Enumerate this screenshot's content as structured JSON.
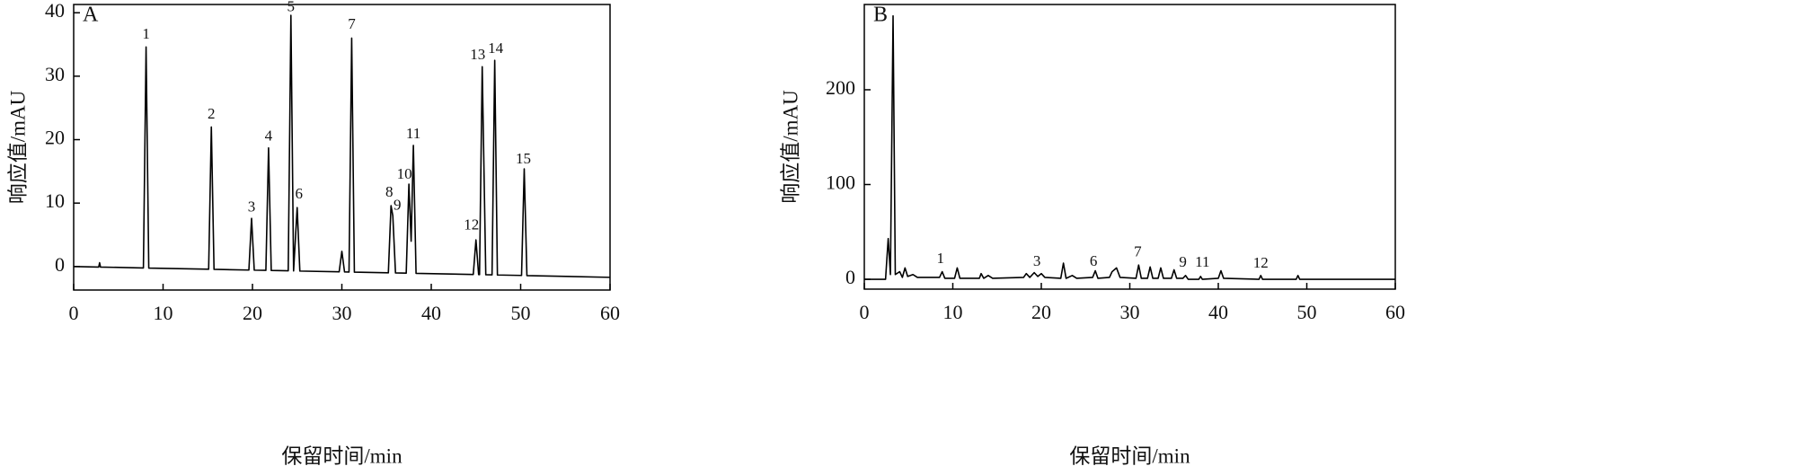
{
  "chart_data": [
    {
      "type": "line",
      "panel_label": "A",
      "xlabel": "保留时间/min",
      "ylabel": "响应值/mAU",
      "color": "#000000",
      "xlim": [
        0,
        60
      ],
      "ylim": [
        -3.7,
        41.3
      ],
      "xticks": [
        0,
        10,
        20,
        30,
        40,
        50,
        60
      ],
      "yticks": [
        0,
        10,
        20,
        30,
        40
      ],
      "x": [
        0,
        2.8,
        2.9,
        3.0,
        7.8,
        8.1,
        8.4,
        15.1,
        15.4,
        15.7,
        19.6,
        19.9,
        20.2,
        21.5,
        21.8,
        22.1,
        24.0,
        24.3,
        24.6,
        25.0,
        25.3,
        29.7,
        30.0,
        30.3,
        30.8,
        31.1,
        31.4,
        35.2,
        35.5,
        35.7,
        36.0,
        37.2,
        37.5,
        37.75,
        38.0,
        38.3,
        44.7,
        45.0,
        45.3,
        45.4,
        45.7,
        46.1,
        46.8,
        47.1,
        47.4,
        50.1,
        50.4,
        50.7,
        60
      ],
      "values": [
        0,
        -0.08,
        0.6,
        -0.08,
        -0.22,
        34.6,
        -0.24,
        -0.42,
        22.0,
        -0.44,
        -0.55,
        7.6,
        -0.57,
        -0.6,
        18.7,
        -0.62,
        -0.67,
        39.6,
        -0.69,
        9.3,
        -0.71,
        -0.83,
        2.4,
        -0.85,
        -0.86,
        36.0,
        -0.88,
        -0.99,
        9.6,
        8.0,
        -1.0,
        -1.04,
        13.0,
        4.0,
        19.1,
        -1.07,
        -1.25,
        4.2,
        -1.27,
        -1.27,
        31.5,
        -1.29,
        -1.31,
        32.5,
        -1.33,
        -1.4,
        15.4,
        -1.42,
        -1.7
      ],
      "annotations": [
        {
          "text": "1",
          "x": 8.1,
          "y": 36.5
        },
        {
          "text": "2",
          "x": 15.4,
          "y": 23.9
        },
        {
          "text": "3",
          "x": 19.9,
          "y": 9.2
        },
        {
          "text": "4",
          "x": 21.8,
          "y": 20.4
        },
        {
          "text": "5",
          "x": 24.3,
          "y": 40.8
        },
        {
          "text": "6",
          "x": 25.2,
          "y": 11.3
        },
        {
          "text": "7",
          "x": 31.1,
          "y": 38.0
        },
        {
          "text": "8",
          "x": 35.3,
          "y": 11.6
        },
        {
          "text": "9",
          "x": 36.2,
          "y": 9.5
        },
        {
          "text": "10",
          "x": 37.0,
          "y": 14.4
        },
        {
          "text": "11",
          "x": 38.0,
          "y": 20.8
        },
        {
          "text": "12",
          "x": 44.5,
          "y": 6.4
        },
        {
          "text": "13",
          "x": 45.2,
          "y": 33.2
        },
        {
          "text": "14",
          "x": 47.2,
          "y": 34.2
        },
        {
          "text": "15",
          "x": 50.3,
          "y": 16.8
        }
      ]
    },
    {
      "type": "line",
      "panel_label": "B",
      "xlabel": "保留时间/min",
      "ylabel": "响应值/mAU",
      "color": "#000000",
      "xlim": [
        0,
        60
      ],
      "ylim": [
        -10.4,
        290
      ],
      "xticks": [
        0,
        10,
        20,
        30,
        40,
        50,
        60
      ],
      "yticks": [
        0,
        100,
        200
      ],
      "x": [
        0,
        2.4,
        2.7,
        2.95,
        3.25,
        3.5,
        4.0,
        4.3,
        4.6,
        4.9,
        5.5,
        6,
        8.5,
        8.8,
        9.1,
        10.2,
        10.5,
        10.8,
        13,
        13.2,
        13.5,
        14,
        14.5,
        18,
        18.3,
        18.7,
        19.2,
        19.6,
        20,
        20.4,
        22.2,
        22.5,
        22.8,
        23.5,
        24,
        25.8,
        26.1,
        26.4,
        27.7,
        28,
        28.5,
        28.9,
        30.7,
        31.0,
        31.3,
        32,
        32.3,
        32.6,
        33.2,
        33.5,
        33.8,
        34.7,
        35.0,
        35.3,
        36,
        36.3,
        36.6,
        37.8,
        38,
        38.2,
        40,
        40.3,
        40.6,
        44.6,
        44.8,
        45,
        48.8,
        49,
        49.2,
        60
      ],
      "values": [
        0,
        0,
        43,
        5,
        278,
        5,
        8,
        2,
        12,
        3,
        5,
        2,
        2,
        8,
        1,
        1,
        12,
        1,
        1,
        6,
        1,
        4,
        1,
        2,
        6,
        2,
        7,
        3,
        6,
        2,
        1,
        17,
        1,
        4,
        1,
        2,
        9,
        1,
        2,
        8,
        12,
        2,
        1,
        15,
        1,
        1,
        13,
        1,
        1,
        12,
        1,
        1,
        10,
        1,
        1,
        4,
        0,
        0,
        3,
        0,
        1,
        9,
        1,
        0,
        4,
        0,
        0,
        4,
        0,
        0
      ],
      "annotations": [
        {
          "text": "1",
          "x": 8.6,
          "y": 21
        },
        {
          "text": "3",
          "x": 19.5,
          "y": 18
        },
        {
          "text": "6",
          "x": 25.9,
          "y": 18
        },
        {
          "text": "7",
          "x": 30.9,
          "y": 28
        },
        {
          "text": "9",
          "x": 36.0,
          "y": 17
        },
        {
          "text": "11",
          "x": 38.2,
          "y": 17
        },
        {
          "text": "12",
          "x": 44.8,
          "y": 16
        }
      ]
    }
  ]
}
